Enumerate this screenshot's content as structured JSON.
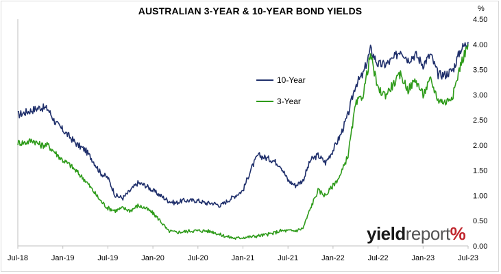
{
  "chart_data": {
    "type": "line",
    "title": "AUSTRALIAN 3-YEAR & 10-YEAR BOND YIELDS",
    "y_unit": "%",
    "ylim": [
      0,
      4.5
    ],
    "y_ticks": [
      "0.00",
      "0.50",
      "1.00",
      "1.50",
      "2.00",
      "2.50",
      "3.00",
      "3.50",
      "4.00",
      "4.50"
    ],
    "x_ticks": [
      "Jul-18",
      "Jan-19",
      "Jul-19",
      "Jan-20",
      "Jul-20",
      "Jan-21",
      "Jul-21",
      "Jan-22",
      "Jul-22",
      "Jan-23",
      "Jul-23"
    ],
    "legend_position": "center",
    "x": [
      "Jul-18",
      "Aug-18",
      "Sep-18",
      "Oct-18",
      "Nov-18",
      "Dec-18",
      "Jan-19",
      "Feb-19",
      "Mar-19",
      "Apr-19",
      "May-19",
      "Jun-19",
      "Jul-19",
      "Aug-19",
      "Sep-19",
      "Oct-19",
      "Nov-19",
      "Dec-19",
      "Jan-20",
      "Feb-20",
      "Mar-20",
      "Apr-20",
      "May-20",
      "Jun-20",
      "Jul-20",
      "Aug-20",
      "Sep-20",
      "Oct-20",
      "Nov-20",
      "Dec-20",
      "Jan-21",
      "Feb-21",
      "Mar-21",
      "Apr-21",
      "May-21",
      "Jun-21",
      "Jul-21",
      "Aug-21",
      "Sep-21",
      "Oct-21",
      "Nov-21",
      "Dec-21",
      "Jan-22",
      "Feb-22",
      "Mar-22",
      "Apr-22",
      "May-22",
      "Jun-22",
      "Jul-22",
      "Aug-22",
      "Sep-22",
      "Oct-22",
      "Nov-22",
      "Dec-22",
      "Jan-23",
      "Feb-23",
      "Mar-23",
      "Apr-23",
      "May-23",
      "Jun-23",
      "Jul-23"
    ],
    "series": [
      {
        "name": "10-Year",
        "color": "#1f2f6b",
        "values": [
          2.6,
          2.65,
          2.7,
          2.75,
          2.72,
          2.45,
          2.3,
          2.15,
          2.0,
          1.9,
          1.7,
          1.45,
          1.35,
          1.0,
          0.95,
          1.1,
          1.25,
          1.2,
          1.1,
          1.0,
          0.9,
          0.85,
          0.9,
          0.9,
          0.9,
          0.85,
          0.85,
          0.8,
          0.9,
          1.0,
          1.1,
          1.5,
          1.8,
          1.75,
          1.7,
          1.6,
          1.3,
          1.2,
          1.3,
          1.7,
          1.8,
          1.65,
          1.9,
          2.2,
          2.6,
          3.2,
          3.4,
          3.9,
          3.6,
          3.6,
          3.7,
          3.9,
          3.7,
          3.8,
          3.6,
          3.8,
          3.4,
          3.4,
          3.5,
          3.9,
          4.05
        ]
      },
      {
        "name": "3-Year",
        "color": "#2e9b1a",
        "values": [
          2.05,
          2.05,
          2.1,
          2.0,
          2.0,
          1.85,
          1.7,
          1.6,
          1.45,
          1.3,
          1.1,
          0.9,
          0.75,
          0.7,
          0.75,
          0.7,
          0.8,
          0.75,
          0.65,
          0.5,
          0.3,
          0.27,
          0.28,
          0.3,
          0.3,
          0.3,
          0.28,
          0.22,
          0.18,
          0.15,
          0.17,
          0.18,
          0.2,
          0.22,
          0.25,
          0.3,
          0.3,
          0.3,
          0.35,
          0.75,
          1.1,
          1.0,
          1.2,
          1.4,
          1.8,
          2.8,
          3.0,
          3.8,
          3.1,
          3.0,
          3.2,
          3.4,
          3.1,
          3.3,
          3.0,
          3.3,
          2.9,
          2.85,
          3.0,
          3.6,
          4.0
        ]
      }
    ]
  },
  "brand": {
    "part1": "yield",
    "part2": "report",
    "part3": "%"
  }
}
